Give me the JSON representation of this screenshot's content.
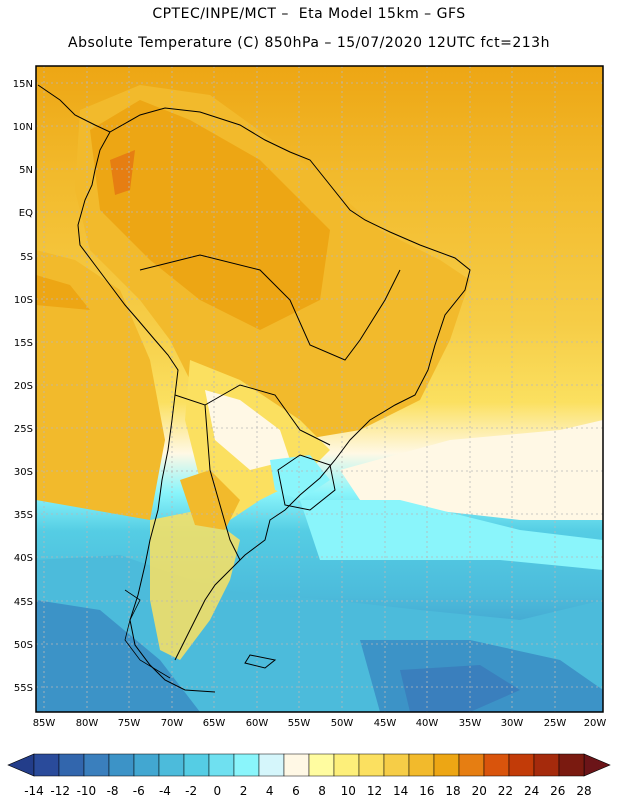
{
  "header": {
    "line1": "CPTEC/INPE/MCT –  Eta Model 15km – GFS",
    "line2": "Absolute Temperature (C) 850hPa – 15/07/2020 12UTC fct=213h"
  },
  "map": {
    "lat_labels": [
      "15N",
      "10N",
      "5N",
      "EQ",
      "5S",
      "10S",
      "15S",
      "20S",
      "25S",
      "30S",
      "35S",
      "40S",
      "45S",
      "50S",
      "55S"
    ],
    "lon_labels": [
      "85W",
      "80W",
      "75W",
      "70W",
      "65W",
      "60W",
      "55W",
      "50W",
      "45W",
      "40W",
      "35W",
      "30W",
      "25W",
      "20W"
    ],
    "extent": {
      "lon_min": -85,
      "lon_max": -20,
      "lat_min": -58,
      "lat_max": 16
    }
  },
  "colorbar": {
    "labels": [
      "-14",
      "-12",
      "-10",
      "-8",
      "-6",
      "-4",
      "-2",
      "0",
      "2",
      "4",
      "6",
      "8",
      "10",
      "12",
      "14",
      "16",
      "18",
      "20",
      "22",
      "24",
      "26",
      "28"
    ],
    "colors": [
      "#2a4b9b",
      "#3266ad",
      "#3a7fbd",
      "#3c93c7",
      "#42a7d1",
      "#4cbbdb",
      "#55cde4",
      "#6fe0f0",
      "#8af5fb",
      "#d5f6fb",
      "#fff8e5",
      "#fffca0",
      "#fdef7a",
      "#fbe060",
      "#f6cd47",
      "#f2ba2c",
      "#eda614",
      "#e67e12",
      "#d9540c",
      "#c23b08",
      "#a52a0c",
      "#7a1a10"
    ],
    "under_color": "#233d8a",
    "over_color": "#6b1418"
  }
}
